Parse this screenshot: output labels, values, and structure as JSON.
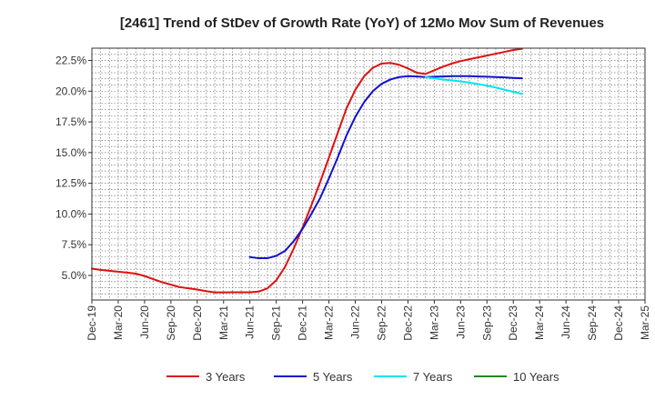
{
  "chart_data": {
    "type": "line",
    "title": "[2461]  Trend of StDev of Growth Rate (YoY) of 12Mo Mov Sum of Revenues",
    "xlabel": "",
    "ylabel": "",
    "ylim": [
      3.0,
      23.5
    ],
    "yticks": [
      5.0,
      7.5,
      10.0,
      12.5,
      15.0,
      17.5,
      20.0,
      22.5
    ],
    "ytick_labels": [
      "5.0%",
      "7.5%",
      "10.0%",
      "12.5%",
      "15.0%",
      "17.5%",
      "20.0%",
      "22.5%"
    ],
    "x_tick_labels": [
      "Dec-19",
      "Mar-20",
      "Jun-20",
      "Sep-20",
      "Dec-20",
      "Mar-21",
      "Jun-21",
      "Sep-21",
      "Dec-21",
      "Mar-22",
      "Jun-22",
      "Sep-22",
      "Dec-22",
      "Mar-23",
      "Jun-23",
      "Sep-23",
      "Dec-23",
      "Mar-24",
      "Jun-24",
      "Sep-24",
      "Dec-24",
      "Mar-25"
    ],
    "grid": true,
    "legend_position": "bottom",
    "series": [
      {
        "name": "3 Years",
        "color": "#dd1111",
        "points": [
          [
            0,
            5.55
          ],
          [
            1,
            5.45
          ],
          [
            2,
            5.38
          ],
          [
            3,
            5.3
          ],
          [
            4,
            5.23
          ],
          [
            5,
            5.15
          ],
          [
            6,
            4.95
          ],
          [
            7,
            4.7
          ],
          [
            8,
            4.45
          ],
          [
            9,
            4.25
          ],
          [
            10,
            4.05
          ],
          [
            11,
            3.95
          ],
          [
            12,
            3.85
          ],
          [
            13,
            3.72
          ],
          [
            14,
            3.62
          ],
          [
            15,
            3.62
          ],
          [
            16,
            3.63
          ],
          [
            17,
            3.63
          ],
          [
            18,
            3.63
          ],
          [
            19,
            3.68
          ],
          [
            20,
            3.95
          ],
          [
            21,
            4.6
          ],
          [
            22,
            5.7
          ],
          [
            23,
            7.2
          ],
          [
            24,
            8.9
          ],
          [
            25,
            10.7
          ],
          [
            26,
            12.6
          ],
          [
            27,
            14.6
          ],
          [
            28,
            16.6
          ],
          [
            29,
            18.6
          ],
          [
            30,
            20.1
          ],
          [
            31,
            21.2
          ],
          [
            32,
            21.9
          ],
          [
            33,
            22.25
          ],
          [
            34,
            22.3
          ],
          [
            35,
            22.15
          ],
          [
            36,
            21.85
          ],
          [
            37,
            21.5
          ],
          [
            38,
            21.4
          ],
          [
            39,
            21.7
          ],
          [
            40,
            22.0
          ],
          [
            41,
            22.25
          ],
          [
            42,
            22.45
          ],
          [
            43,
            22.6
          ],
          [
            44,
            22.75
          ],
          [
            45,
            22.9
          ],
          [
            46,
            23.05
          ],
          [
            47,
            23.2
          ],
          [
            48,
            23.35
          ],
          [
            49,
            23.45
          ]
        ]
      },
      {
        "name": "5 Years",
        "color": "#1111cc",
        "points": [
          [
            18,
            6.5
          ],
          [
            19,
            6.4
          ],
          [
            20,
            6.4
          ],
          [
            21,
            6.6
          ],
          [
            22,
            7.0
          ],
          [
            23,
            7.8
          ],
          [
            24,
            8.8
          ],
          [
            25,
            10.0
          ],
          [
            26,
            11.3
          ],
          [
            27,
            12.9
          ],
          [
            28,
            14.6
          ],
          [
            29,
            16.4
          ],
          [
            30,
            17.9
          ],
          [
            31,
            19.1
          ],
          [
            32,
            20.0
          ],
          [
            33,
            20.6
          ],
          [
            34,
            20.95
          ],
          [
            35,
            21.15
          ],
          [
            36,
            21.22
          ],
          [
            37,
            21.2
          ],
          [
            38,
            21.15
          ],
          [
            39,
            21.18
          ],
          [
            40,
            21.2
          ],
          [
            41,
            21.22
          ],
          [
            42,
            21.22
          ],
          [
            43,
            21.22
          ],
          [
            44,
            21.2
          ],
          [
            45,
            21.18
          ],
          [
            46,
            21.15
          ],
          [
            47,
            21.12
          ],
          [
            48,
            21.08
          ],
          [
            49,
            21.05
          ]
        ]
      },
      {
        "name": "7 Years",
        "color": "#00e5ee",
        "points": [
          [
            38,
            21.15
          ],
          [
            39,
            21.05
          ],
          [
            40,
            20.95
          ],
          [
            41,
            20.88
          ],
          [
            42,
            20.8
          ],
          [
            43,
            20.7
          ],
          [
            44,
            20.58
          ],
          [
            45,
            20.45
          ],
          [
            46,
            20.3
          ],
          [
            47,
            20.12
          ],
          [
            48,
            19.95
          ],
          [
            49,
            19.78
          ]
        ]
      },
      {
        "name": "10 Years",
        "color": "#228822",
        "points": []
      }
    ]
  }
}
